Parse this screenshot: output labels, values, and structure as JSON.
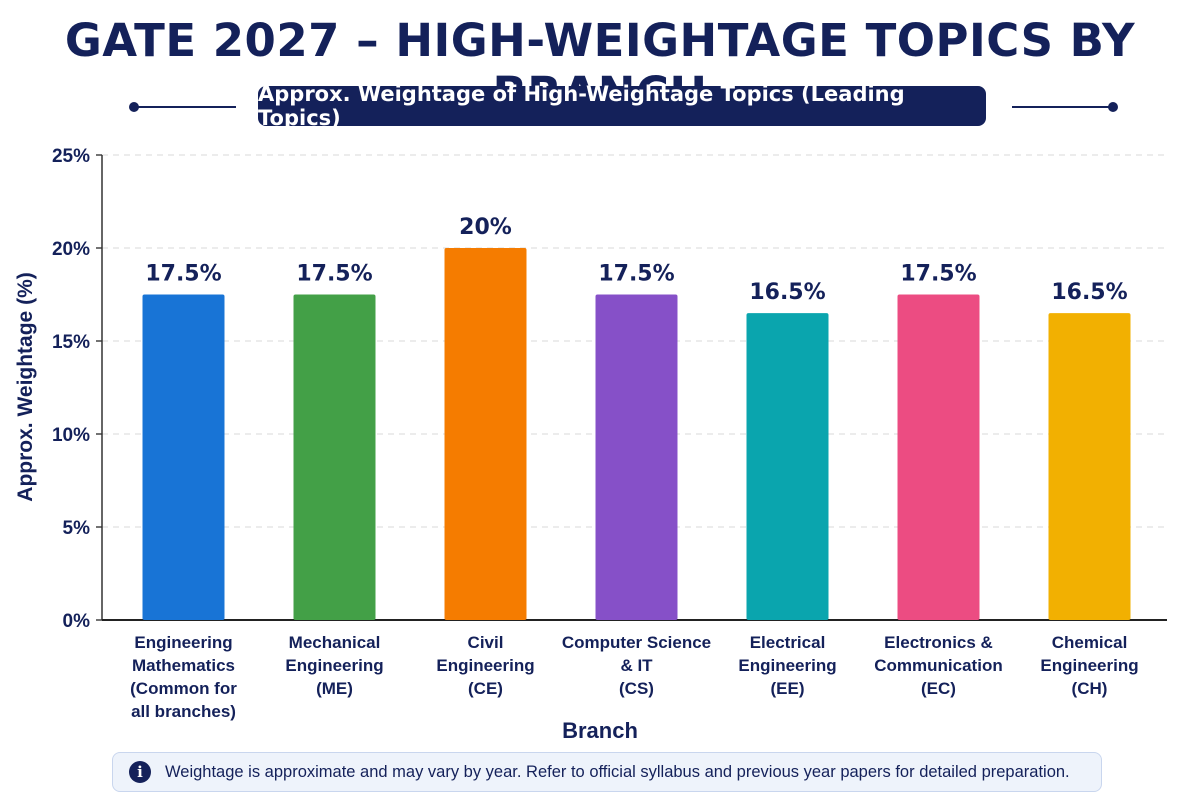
{
  "title": "GATE 2027 – HIGH-WEIGHTAGE TOPICS BY BRANCH",
  "subtitle": "Approx. Weightage of High-Weightage Topics (Leading Topics)",
  "footer": {
    "icon": "info-icon",
    "icon_glyph": "i",
    "text": "Weightage is approximate and may vary by year. Refer to official syllabus and previous year papers for detailed preparation."
  },
  "colors": {
    "title": "#14215a",
    "grid": "#d9d9d9"
  },
  "chart_data": {
    "type": "bar",
    "xlabel": "Branch",
    "ylabel": "Approx. Weightage (%)",
    "ylim": [
      0,
      25
    ],
    "yticks": [
      0,
      5,
      10,
      15,
      20,
      25
    ],
    "ytick_labels": [
      "0%",
      "5%",
      "10%",
      "15%",
      "20%",
      "25%"
    ],
    "grid": "horizontal dashed",
    "categories": [
      [
        "Engineering",
        "Mathematics",
        "(Common for",
        "all branches)"
      ],
      [
        "Mechanical",
        "Engineering",
        "(ME)"
      ],
      [
        "Civil",
        "Engineering",
        "(CE)"
      ],
      [
        "Computer Science",
        "& IT",
        "(CS)"
      ],
      [
        "Electrical",
        "Engineering",
        "(EE)"
      ],
      [
        "Electronics &",
        "Communication",
        "(EC)"
      ],
      [
        "Chemical",
        "Engineering",
        "(CH)"
      ]
    ],
    "values": [
      17.5,
      17.5,
      20,
      17.5,
      16.5,
      17.5,
      16.5
    ],
    "value_labels": [
      "17.5%",
      "17.5%",
      "20%",
      "17.5%",
      "16.5%",
      "17.5%",
      "16.5%"
    ],
    "bar_colors": [
      "#1874d6",
      "#43a047",
      "#f57c00",
      "#8650c8",
      "#0aa5ae",
      "#ec4c82",
      "#f2b001"
    ]
  }
}
